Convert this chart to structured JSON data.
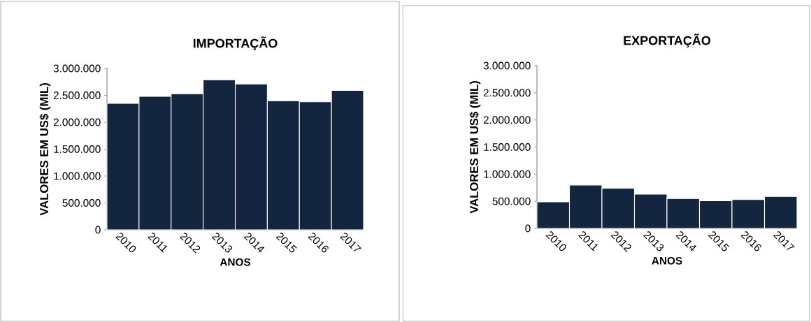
{
  "chart_data": [
    {
      "type": "bar",
      "title": "IMPORTAÇÃO",
      "xlabel": "ANOS",
      "ylabel": "VALORES EM US$ (MIL)",
      "categories": [
        "2010",
        "2011",
        "2012",
        "2013",
        "2014",
        "2015",
        "2016",
        "2017"
      ],
      "values": [
        2350000,
        2480000,
        2530000,
        2790000,
        2710000,
        2400000,
        2380000,
        2590000
      ],
      "color": "#13253f",
      "ylim": [
        0,
        3000000
      ],
      "yticks": [
        0,
        {
          "value": 500000,
          "label": "500.000"
        },
        {
          "value": 1000000,
          "label": "1.000.000"
        },
        {
          "value": 1500000,
          "label": "1.500.000"
        },
        {
          "value": 2000000,
          "label": "2.000.000"
        },
        {
          "value": 2500000,
          "label": "2.500.000"
        },
        {
          "value": 3000000,
          "label": "3.000.000"
        }
      ]
    },
    {
      "type": "bar",
      "title": "EXPORTAÇÃO",
      "xlabel": "ANOS",
      "ylabel": "VALORES EM US$ (MIL)",
      "categories": [
        "2010",
        "2011",
        "2012",
        "2013",
        "2014",
        "2015",
        "2016",
        "2017"
      ],
      "values": [
        490000,
        800000,
        740000,
        630000,
        550000,
        510000,
        530000,
        590000
      ],
      "color": "#13253f",
      "ylim": [
        0,
        3000000
      ],
      "yticks": [
        0,
        {
          "value": 500000,
          "label": "500.000"
        },
        {
          "value": 1000000,
          "label": "1.000.000"
        },
        {
          "value": 1500000,
          "label": "1.500.000"
        },
        {
          "value": 2000000,
          "label": "2.000.000"
        },
        {
          "value": 2500000,
          "label": "2.500.000"
        },
        {
          "value": 3000000,
          "label": "3.000.000"
        }
      ]
    }
  ]
}
